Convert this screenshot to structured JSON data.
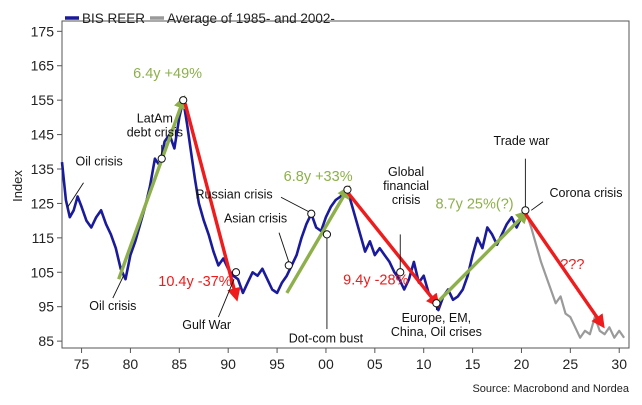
{
  "chart_data": {
    "type": "line",
    "source": "Source: Macrobond and Nordea",
    "ylabel": "Index",
    "xlim": [
      1973,
      2031
    ],
    "ylim": [
      83,
      178
    ],
    "yticks": [
      85,
      95,
      105,
      115,
      125,
      135,
      145,
      155,
      165,
      175
    ],
    "xticks": [
      1975,
      1980,
      1985,
      1990,
      1995,
      2000,
      2005,
      2010,
      2015,
      2020,
      2025,
      2030
    ],
    "xtick_labels": [
      "75",
      "80",
      "85",
      "90",
      "95",
      "00",
      "05",
      "10",
      "15",
      "20",
      "25",
      "30"
    ],
    "colors": {
      "bis": "#1a1a9c",
      "avg": "#9a9a9a",
      "green": "#8db04a",
      "red": "#ee1c1c"
    },
    "series": [
      {
        "name": "BIS REER",
        "points": [
          [
            1973.0,
            137
          ],
          [
            1973.4,
            126
          ],
          [
            1973.8,
            121
          ],
          [
            1974.2,
            123
          ],
          [
            1974.6,
            127
          ],
          [
            1975.0,
            124
          ],
          [
            1975.5,
            120
          ],
          [
            1976.0,
            118
          ],
          [
            1976.5,
            121
          ],
          [
            1977.0,
            123
          ],
          [
            1977.5,
            119
          ],
          [
            1978.0,
            116
          ],
          [
            1978.5,
            112
          ],
          [
            1979.0,
            106
          ],
          [
            1979.5,
            103
          ],
          [
            1980.0,
            110
          ],
          [
            1980.5,
            114
          ],
          [
            1981.0,
            119
          ],
          [
            1981.5,
            124
          ],
          [
            1982.0,
            130
          ],
          [
            1982.5,
            138
          ],
          [
            1983.0,
            136
          ],
          [
            1983.5,
            143
          ],
          [
            1984.0,
            145
          ],
          [
            1984.5,
            141
          ],
          [
            1985.0,
            150
          ],
          [
            1985.4,
            155
          ],
          [
            1985.8,
            148
          ],
          [
            1986.2,
            140
          ],
          [
            1986.6,
            132
          ],
          [
            1987.0,
            125
          ],
          [
            1987.5,
            120
          ],
          [
            1988.0,
            116
          ],
          [
            1988.5,
            111
          ],
          [
            1989.0,
            107
          ],
          [
            1989.5,
            109
          ],
          [
            1990.0,
            106
          ],
          [
            1990.5,
            104
          ],
          [
            1991.0,
            103
          ],
          [
            1991.5,
            99
          ],
          [
            1992.0,
            102
          ],
          [
            1992.5,
            105
          ],
          [
            1993.0,
            104
          ],
          [
            1993.5,
            106
          ],
          [
            1994.0,
            103
          ],
          [
            1994.5,
            100
          ],
          [
            1995.0,
            99
          ],
          [
            1995.5,
            102
          ],
          [
            1996.0,
            104
          ],
          [
            1996.5,
            107
          ],
          [
            1997.0,
            110
          ],
          [
            1997.5,
            115
          ],
          [
            1998.0,
            119
          ],
          [
            1998.5,
            122
          ],
          [
            1999.0,
            118
          ],
          [
            1999.5,
            117
          ],
          [
            2000.0,
            121
          ],
          [
            2000.5,
            124
          ],
          [
            2001.0,
            126
          ],
          [
            2001.5,
            127
          ],
          [
            2002.0,
            129
          ],
          [
            2002.5,
            126
          ],
          [
            2003.0,
            121
          ],
          [
            2003.5,
            116
          ],
          [
            2004.0,
            111
          ],
          [
            2004.5,
            114
          ],
          [
            2005.0,
            110
          ],
          [
            2005.5,
            112
          ],
          [
            2006.0,
            110
          ],
          [
            2006.5,
            108
          ],
          [
            2007.0,
            105
          ],
          [
            2007.5,
            103
          ],
          [
            2008.0,
            100
          ],
          [
            2008.5,
            103
          ],
          [
            2009.0,
            108
          ],
          [
            2009.5,
            102
          ],
          [
            2010.0,
            104
          ],
          [
            2010.5,
            99
          ],
          [
            2011.0,
            97
          ],
          [
            2011.5,
            94
          ],
          [
            2012.0,
            98
          ],
          [
            2012.5,
            100
          ],
          [
            2013.0,
            97
          ],
          [
            2013.5,
            98
          ],
          [
            2014.0,
            100
          ],
          [
            2014.5,
            104
          ],
          [
            2015.0,
            110
          ],
          [
            2015.5,
            115
          ],
          [
            2016.0,
            112
          ],
          [
            2016.5,
            118
          ],
          [
            2017.0,
            116
          ],
          [
            2017.5,
            113
          ],
          [
            2018.0,
            116
          ],
          [
            2018.5,
            119
          ],
          [
            2019.0,
            121
          ],
          [
            2019.5,
            118
          ],
          [
            2020.0,
            121
          ],
          [
            2020.4,
            123
          ]
        ]
      },
      {
        "name": "Average of 1985- and 2002-",
        "points": [
          [
            2020.4,
            123
          ],
          [
            2021.0,
            118
          ],
          [
            2021.5,
            113
          ],
          [
            2022.0,
            108
          ],
          [
            2022.5,
            104
          ],
          [
            2023.0,
            100
          ],
          [
            2023.5,
            96
          ],
          [
            2024.0,
            98
          ],
          [
            2024.5,
            93
          ],
          [
            2025.0,
            92
          ],
          [
            2025.5,
            89
          ],
          [
            2026.0,
            86
          ],
          [
            2026.5,
            88
          ],
          [
            2027.0,
            87
          ],
          [
            2027.5,
            92
          ],
          [
            2028.0,
            88
          ],
          [
            2028.5,
            87
          ],
          [
            2029.0,
            89
          ],
          [
            2029.5,
            86
          ],
          [
            2030.0,
            88
          ],
          [
            2030.5,
            86
          ]
        ]
      }
    ],
    "trend_arrows": [
      {
        "color": "green",
        "from": [
          1978.8,
          103
        ],
        "to": [
          1985.4,
          155
        ]
      },
      {
        "color": "red",
        "from": [
          1985.6,
          154
        ],
        "to": [
          1990.8,
          98
        ]
      },
      {
        "color": "green",
        "from": [
          1996.0,
          99
        ],
        "to": [
          2002.2,
          129
        ]
      },
      {
        "color": "red",
        "from": [
          2002.0,
          129
        ],
        "to": [
          2011.3,
          96
        ]
      },
      {
        "color": "green",
        "from": [
          2011.3,
          96
        ],
        "to": [
          2020.4,
          122
        ]
      },
      {
        "color": "red",
        "from": [
          2020.4,
          122
        ],
        "to": [
          2028.2,
          90
        ]
      }
    ],
    "event_markers": [
      [
        1983.2,
        138
      ],
      [
        1985.4,
        155
      ],
      [
        1990.8,
        105
      ],
      [
        1996.2,
        107
      ],
      [
        1998.5,
        122
      ],
      [
        2000.1,
        116
      ],
      [
        2002.2,
        129
      ],
      [
        2007.6,
        105
      ],
      [
        2011.3,
        96
      ],
      [
        2020.4,
        123
      ]
    ],
    "annotations": [
      {
        "text": "Oil crisis",
        "lines": [
          "Oil crisis"
        ],
        "pos": [
          1976.8,
          136
        ],
        "anchor": "middle",
        "style": "ann",
        "pointer": {
          "from": [
            1975.2,
            131
          ],
          "to": [
            1973.6,
            124
          ]
        }
      },
      {
        "text": "LatAm debt crisis",
        "lines": [
          "LatAm",
          "debt crisis"
        ],
        "pos": [
          1982.5,
          148.5
        ],
        "anchor": "middle",
        "style": "ann",
        "pointer": {
          "from": [
            1983.2,
            142
          ],
          "to": [
            1983.2,
            139
          ]
        }
      },
      {
        "text": "Oil crisis",
        "lines": [
          "Oil crisis"
        ],
        "pos": [
          1978.2,
          94
        ],
        "anchor": "middle",
        "style": "ann",
        "pointer": {
          "from": [
            1978.2,
            97.5
          ],
          "to": [
            1979.3,
            104
          ]
        }
      },
      {
        "text": "Gulf War",
        "lines": [
          "Gulf War"
        ],
        "pos": [
          1987.8,
          88.5
        ],
        "anchor": "middle",
        "style": "ann",
        "pointer": {
          "from": [
            1989.0,
            92
          ],
          "to": [
            1990.6,
            103
          ]
        }
      },
      {
        "text": "Russian crisis",
        "lines": [
          "Russian crisis"
        ],
        "pos": [
          1990.6,
          126.5
        ],
        "anchor": "middle",
        "style": "ann",
        "pointer": {
          "from": [
            1995.4,
            126.8
          ],
          "to": [
            1998.3,
            122.5
          ]
        }
      },
      {
        "text": "Asian crisis",
        "lines": [
          "Asian crisis"
        ],
        "pos": [
          1992.8,
          119.5
        ],
        "anchor": "middle",
        "style": "ann",
        "pointer": {
          "from": [
            1995.2,
            116.5
          ],
          "to": [
            1996.2,
            108
          ]
        }
      },
      {
        "text": "Dot-com bust",
        "lines": [
          "Dot-com bust"
        ],
        "pos": [
          2000.0,
          84.6
        ],
        "anchor": "middle",
        "style": "ann",
        "pointer": {
          "from": [
            2000.1,
            88.5
          ],
          "to": [
            2000.1,
            115.5
          ]
        }
      },
      {
        "text": "Global financial crisis",
        "lines": [
          "Global",
          "financial",
          "crisis"
        ],
        "pos": [
          2008.2,
          133
        ],
        "anchor": "middle",
        "style": "ann",
        "pointer": {
          "from": [
            2007.6,
            116
          ],
          "to": [
            2007.6,
            106
          ]
        }
      },
      {
        "text": "Trade war",
        "lines": [
          "Trade war"
        ],
        "pos": [
          2020.0,
          142
        ],
        "anchor": "middle",
        "style": "ann",
        "pointer": {
          "from": [
            2020.4,
            138
          ],
          "to": [
            2020.4,
            124
          ]
        }
      },
      {
        "text": "Corona crisis",
        "lines": [
          "Corona crisis"
        ],
        "pos": [
          2026.6,
          126.8
        ],
        "anchor": "middle",
        "style": "ann",
        "pointer": {
          "from": [
            2022.2,
            125.5
          ],
          "to": [
            2021.0,
            123
          ]
        }
      },
      {
        "text": "Europe, EM, China, Oil crises",
        "lines": [
          "Europe, EM,",
          "China, Oil crises"
        ],
        "pos": [
          2011.3,
          90.6
        ],
        "anchor": "middle",
        "style": "ann",
        "pointer": {
          "from": [
            2011.3,
            94
          ],
          "to": [
            2011.3,
            95.5
          ]
        }
      },
      {
        "text": "6.4y +49%",
        "lines": [
          "6.4y +49%"
        ],
        "pos": [
          1983.8,
          161.5
        ],
        "anchor": "middle",
        "style": "ann-green"
      },
      {
        "text": "10.4y -37%",
        "lines": [
          "10.4y -37%"
        ],
        "pos": [
          1986.6,
          101
        ],
        "anchor": "middle",
        "style": "ann-red"
      },
      {
        "text": "6.8y +33%",
        "lines": [
          "6.8y +33%"
        ],
        "pos": [
          1999.2,
          131.5
        ],
        "anchor": "middle",
        "style": "ann-green"
      },
      {
        "text": "9.4y -28%",
        "lines": [
          "9.4y -28%"
        ],
        "pos": [
          2005.1,
          101.5
        ],
        "anchor": "middle",
        "style": "ann-red"
      },
      {
        "text": "8.7y 25%(?)",
        "lines": [
          "8.7y 25%(?)"
        ],
        "pos": [
          2015.2,
          123.5
        ],
        "anchor": "middle",
        "style": "ann-green"
      },
      {
        "text": "???",
        "lines": [
          "???"
        ],
        "pos": [
          2025.2,
          106
        ],
        "anchor": "middle",
        "style": "ann-red"
      }
    ]
  }
}
